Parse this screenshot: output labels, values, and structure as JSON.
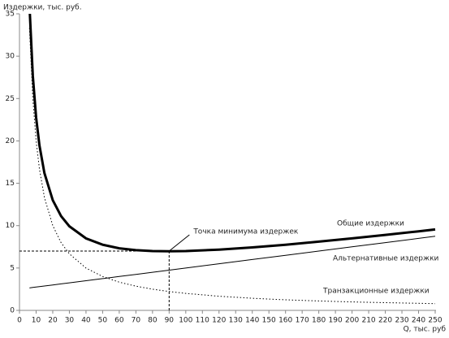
{
  "chart_data": {
    "type": "line",
    "ylabel": "Издержки, тыс. руб.",
    "xlabel": "Q, тыс. руб",
    "x": [
      6,
      8,
      10,
      12,
      15,
      20,
      25,
      30,
      40,
      50,
      60,
      70,
      80,
      90,
      100,
      120,
      140,
      160,
      180,
      200,
      220,
      240,
      250
    ],
    "series": [
      {
        "name": "Общие издержки",
        "color": "#000000",
        "line_width": 3,
        "line_style": "solid",
        "values": [
          35.98,
          27.7,
          22.75,
          19.47,
          16.21,
          13.0,
          11.13,
          9.92,
          8.5,
          7.75,
          7.33,
          7.11,
          7.0,
          6.97,
          7.0,
          7.17,
          7.43,
          7.75,
          8.11,
          8.5,
          8.91,
          9.33,
          9.55
        ]
      },
      {
        "name": "Альтернативные издержки",
        "color": "#000000",
        "line_width": 1,
        "line_style": "solid",
        "values": [
          2.65,
          2.7,
          2.75,
          2.8,
          2.875,
          3.0,
          3.125,
          3.25,
          3.5,
          3.75,
          4.0,
          4.25,
          4.5,
          4.75,
          5.0,
          5.5,
          6.0,
          6.5,
          7.0,
          7.5,
          8.0,
          8.5,
          8.75
        ]
      },
      {
        "name": "Транзакционные издержки",
        "color": "#000000",
        "line_width": 1,
        "line_style": "dotted",
        "values": [
          33.33,
          25.0,
          20.0,
          16.67,
          13.33,
          10.0,
          8.0,
          6.67,
          5.0,
          4.0,
          3.33,
          2.86,
          2.5,
          2.22,
          2.0,
          1.67,
          1.43,
          1.25,
          1.11,
          1.0,
          0.91,
          0.83,
          0.8
        ]
      }
    ],
    "annotations": [
      {
        "text": "Точка минимума издержек",
        "x": 90,
        "y": 7
      }
    ],
    "xlim": [
      0,
      250
    ],
    "ylim": [
      0,
      35
    ],
    "xticks": [
      0,
      10,
      20,
      30,
      40,
      50,
      60,
      70,
      80,
      90,
      100,
      110,
      120,
      130,
      140,
      150,
      160,
      170,
      180,
      190,
      200,
      210,
      220,
      230,
      240,
      250
    ],
    "yticks": [
      0,
      5,
      10,
      15,
      20,
      25,
      30,
      35
    ],
    "grid": false
  }
}
